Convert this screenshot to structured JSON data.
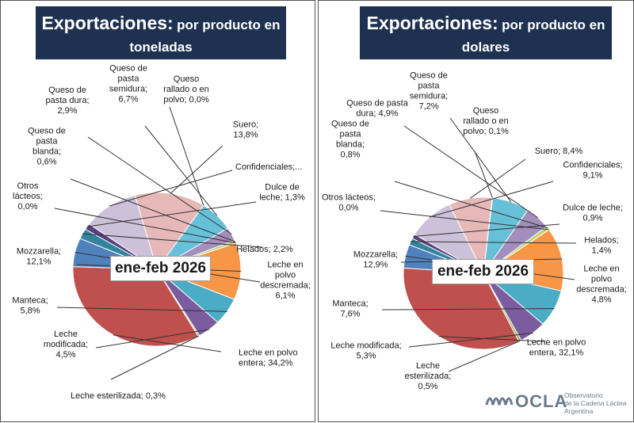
{
  "chart_data": [
    {
      "type": "pie",
      "title": "Exportaciones:",
      "subtitle": "por producto en toneladas",
      "period_label": "ene-feb 2026",
      "slices": [
        {
          "label": "Leche en polvo entera; 34,2%",
          "value": 34.2,
          "color": "#c0504d"
        },
        {
          "label": "Leche esterilizada; 0,3%",
          "value": 0.3,
          "color": "#9bbb59"
        },
        {
          "label": "Leche modificada; 4,5%",
          "value": 4.5,
          "color": "#7b5c9e"
        },
        {
          "label": "Manteca; 5,8%",
          "value": 5.8,
          "color": "#4bacc6"
        },
        {
          "label": "Mozzarella; 12,1%",
          "value": 12.1,
          "color": "#f79646"
        },
        {
          "label": "Otros lácteos; 0,0%",
          "value": 0.0,
          "color": "#2c4d75"
        },
        {
          "label": "Queso de pasta blanda; 0,6%",
          "value": 0.6,
          "color": "#bcd36e"
        },
        {
          "label": "Queso de pasta dura; 2,9%",
          "value": 2.9,
          "color": "#a38ebd"
        },
        {
          "label": "Queso de pasta semidura; 6,7%",
          "value": 6.7,
          "color": "#66c0d8"
        },
        {
          "label": "Queso rallado o en polvo; 0,0%",
          "value": 0.0,
          "color": "#f9b074"
        },
        {
          "label": "Suero; 13,8%",
          "value": 13.8,
          "color": "#e6b9b8"
        },
        {
          "label": "Confidenciales;...",
          "value": 10.9,
          "color": "#ccc1d9"
        },
        {
          "label": "Dulce de leche; 1,3%",
          "value": 1.3,
          "color": "#5b3f7f"
        },
        {
          "label": "Helados; 2,2%",
          "value": 2.2,
          "color": "#31849b"
        },
        {
          "label": "Leche en polvo descremada; 6,1%",
          "value": 6.1,
          "color": "#4f81bd"
        }
      ]
    },
    {
      "type": "pie",
      "title": "Exportaciones:",
      "subtitle": "por producto en dolares",
      "period_label": "ene-feb 2026",
      "slices": [
        {
          "label": "Leche en polvo entera, 32,1%",
          "value": 32.1,
          "color": "#c0504d"
        },
        {
          "label": "Leche esterilizada; 0,5%",
          "value": 0.5,
          "color": "#9bbb59"
        },
        {
          "label": "Leche modificada; 5,3%",
          "value": 5.3,
          "color": "#7b5c9e"
        },
        {
          "label": "Manteca; 7,6%",
          "value": 7.6,
          "color": "#4bacc6"
        },
        {
          "label": "Mozzarella; 12,9%",
          "value": 12.9,
          "color": "#f79646"
        },
        {
          "label": "Otros lácteos; 0,0%",
          "value": 0.0,
          "color": "#2c4d75"
        },
        {
          "label": "Queso de pasta blanda; 0,8%",
          "value": 0.8,
          "color": "#bcd36e"
        },
        {
          "label": "Queso de pasta dura; 4,9%",
          "value": 4.9,
          "color": "#a38ebd"
        },
        {
          "label": "Queso de pasta semidura; 7,2%",
          "value": 7.2,
          "color": "#66c0d8"
        },
        {
          "label": "Queso rallado o en polvo; 0,1%",
          "value": 0.1,
          "color": "#f9b074"
        },
        {
          "label": "Suero; 8,4%",
          "value": 8.4,
          "color": "#e6b9b8"
        },
        {
          "label": "Confidenciales; 9,1%",
          "value": 9.1,
          "color": "#ccc1d9"
        },
        {
          "label": "Dulce de leche; 0,9%",
          "value": 0.9,
          "color": "#5b3f7f"
        },
        {
          "label": "Helados; 1,4%",
          "value": 1.4,
          "color": "#31849b"
        },
        {
          "label": "Leche en polvo descremada; 4,8%",
          "value": 4.8,
          "color": "#4f81bd"
        }
      ]
    }
  ],
  "logo": {
    "name": "OCLA",
    "line1": "Observatorio",
    "line2": "de la Cadena Láctea",
    "line3": "Argentina"
  }
}
